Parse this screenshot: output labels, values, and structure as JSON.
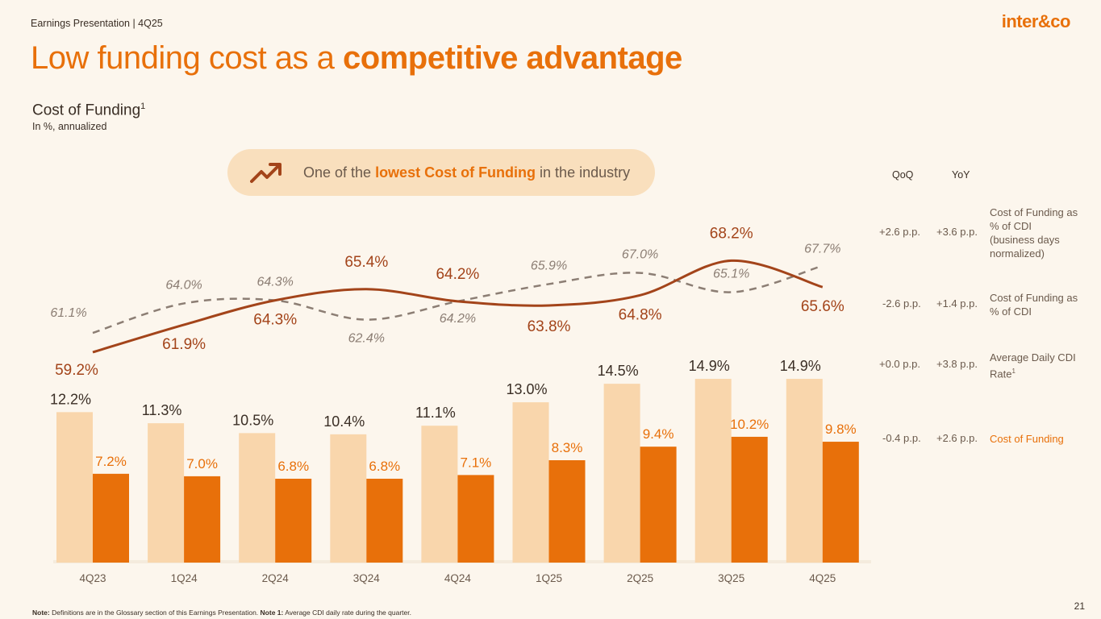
{
  "header": {
    "label": "Earnings Presentation | 4Q25",
    "logo": "inter&co"
  },
  "title": {
    "regular": "Low funding cost as a ",
    "bold": "competitive advantage"
  },
  "subtitle": {
    "text": "Cost of Funding",
    "sup": "1",
    "note": "In %, annualized"
  },
  "callout": {
    "pre": "One of the ",
    "bold": "lowest Cost of Funding",
    "post": " in the industry",
    "icon": "trending-up-icon"
  },
  "table": {
    "qoq_header": "QoQ",
    "yoy_header": "YoY",
    "rows": [
      {
        "qoq": "+2.6 p.p.",
        "yoy": "+3.6 p.p.",
        "label": "Cost of Funding as % of CDI (business days normalized)",
        "sup": ""
      },
      {
        "qoq": "-2.6 p.p.",
        "yoy": "+1.4 p.p.",
        "label": "Cost of Funding as % of CDI",
        "sup": ""
      },
      {
        "qoq": "+0.0 p.p.",
        "yoy": "+3.8 p.p.",
        "label": "Average Daily CDI Rate",
        "sup": "1"
      },
      {
        "qoq": "-0.4 p.p.",
        "yoy": "+2.6 p.p.",
        "label": "Cost of Funding",
        "sup": ""
      }
    ]
  },
  "chart_data": {
    "type": "bar",
    "categories": [
      "4Q23",
      "1Q24",
      "2Q24",
      "3Q24",
      "4Q24",
      "1Q25",
      "2Q25",
      "3Q25",
      "4Q25"
    ],
    "series": [
      {
        "name": "Average Daily CDI Rate",
        "kind": "bar",
        "color": "#f9d6ac",
        "values": [
          12.2,
          11.3,
          10.5,
          10.4,
          11.1,
          13.0,
          14.5,
          14.9,
          14.9
        ],
        "labels": [
          "12.2%",
          "11.3%",
          "10.5%",
          "10.4%",
          "11.1%",
          "13.0%",
          "14.5%",
          "14.9%",
          "14.9%"
        ]
      },
      {
        "name": "Cost of Funding",
        "kind": "bar",
        "color": "#e8700a",
        "values": [
          7.2,
          7.0,
          6.8,
          6.8,
          7.1,
          8.3,
          9.4,
          10.2,
          9.8
        ],
        "labels": [
          "7.2%",
          "7.0%",
          "6.8%",
          "6.8%",
          "7.1%",
          "8.3%",
          "9.4%",
          "10.2%",
          "9.8%"
        ]
      },
      {
        "name": "Cost of Funding as % of CDI",
        "kind": "line",
        "color": "#a3441a",
        "values": [
          59.2,
          61.9,
          64.3,
          65.4,
          64.2,
          63.8,
          64.8,
          68.2,
          65.6
        ],
        "labels": [
          "59.2%",
          "61.9%",
          "64.3%",
          "65.4%",
          "64.2%",
          "63.8%",
          "64.8%",
          "68.2%",
          "65.6%"
        ]
      },
      {
        "name": "Cost of Funding as % of CDI (business days normalized)",
        "kind": "dashed-line",
        "color": "#8c7e74",
        "values": [
          61.1,
          64.0,
          64.3,
          62.4,
          64.2,
          65.9,
          67.0,
          65.1,
          67.7
        ],
        "labels": [
          "61.1%",
          "64.0%",
          "64.3%",
          "62.4%",
          "64.2%",
          "65.9%",
          "67.0%",
          "65.1%",
          "67.7%"
        ]
      }
    ],
    "xlabel": "",
    "ylabel": "",
    "grid": false
  },
  "footnote": {
    "note_label": "Note:",
    "note_text": " Definitions are in the Glossary section of this Earnings Presentation. ",
    "note1_label": "Note 1:",
    "note1_text": " Average CDI daily rate during the quarter."
  },
  "page_number": "21"
}
